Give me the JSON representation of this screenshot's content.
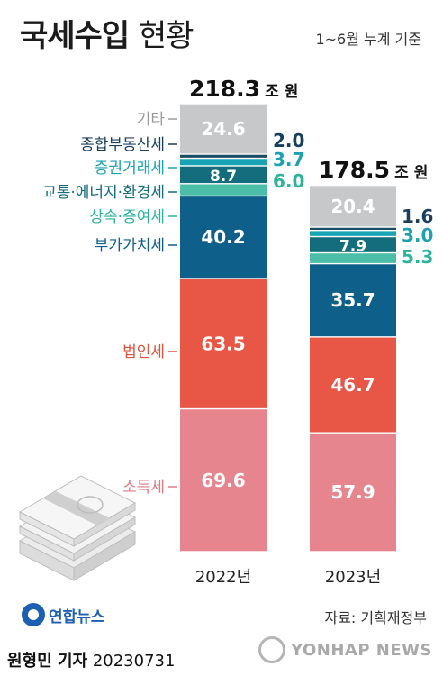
{
  "title": {
    "bold": "국세수입",
    "light": "현황"
  },
  "note": "1~6월 누계 기준",
  "unit": "조 원",
  "source": "자료: 기획재정부",
  "byline": {
    "name": "원형민 기자",
    "date": "20230731"
  },
  "logos": {
    "agency": "연합뉴스",
    "wire": "YONHAP NEWS"
  },
  "colors": {
    "other": "#c7c8ca",
    "property": "#1a4c66",
    "securities": "#19a4b5",
    "traffic": "#136d7c",
    "inheritance": "#4cbea8",
    "vat": "#0e5f8a",
    "corporate": "#e85646",
    "income": "#e6858e"
  },
  "chart_data": {
    "type": "bar",
    "stacked": true,
    "categories": [
      "2022년",
      "2023년"
    ],
    "totals": [
      "218.3",
      "178.5"
    ],
    "series": [
      {
        "key": "income",
        "name": "소득세",
        "values": [
          69.6,
          57.9
        ],
        "labels": [
          "69.6",
          "57.9"
        ]
      },
      {
        "key": "corporate",
        "name": "법인세",
        "values": [
          63.5,
          46.7
        ],
        "labels": [
          "63.5",
          "46.7"
        ]
      },
      {
        "key": "vat",
        "name": "부가가치세",
        "values": [
          40.2,
          35.7
        ],
        "labels": [
          "40.2",
          "35.7"
        ]
      },
      {
        "key": "inheritance",
        "name": "상속·증여세",
        "values": [
          6.0,
          5.3
        ],
        "labels": [
          "6.0",
          "5.3"
        ]
      },
      {
        "key": "traffic",
        "name": "교통·에너지·환경세",
        "values": [
          8.7,
          7.9
        ],
        "labels": [
          "8.7",
          "7.9"
        ]
      },
      {
        "key": "securities",
        "name": "증권거래세",
        "values": [
          3.7,
          3.0
        ],
        "labels": [
          "3.7",
          "3.0"
        ]
      },
      {
        "key": "property",
        "name": "종합부동산세",
        "values": [
          2.0,
          1.6
        ],
        "labels": [
          "2.0",
          "1.6"
        ]
      },
      {
        "key": "other",
        "name": "기타",
        "values": [
          24.6,
          20.4
        ],
        "labels": [
          "24.6",
          "20.4"
        ]
      }
    ]
  }
}
